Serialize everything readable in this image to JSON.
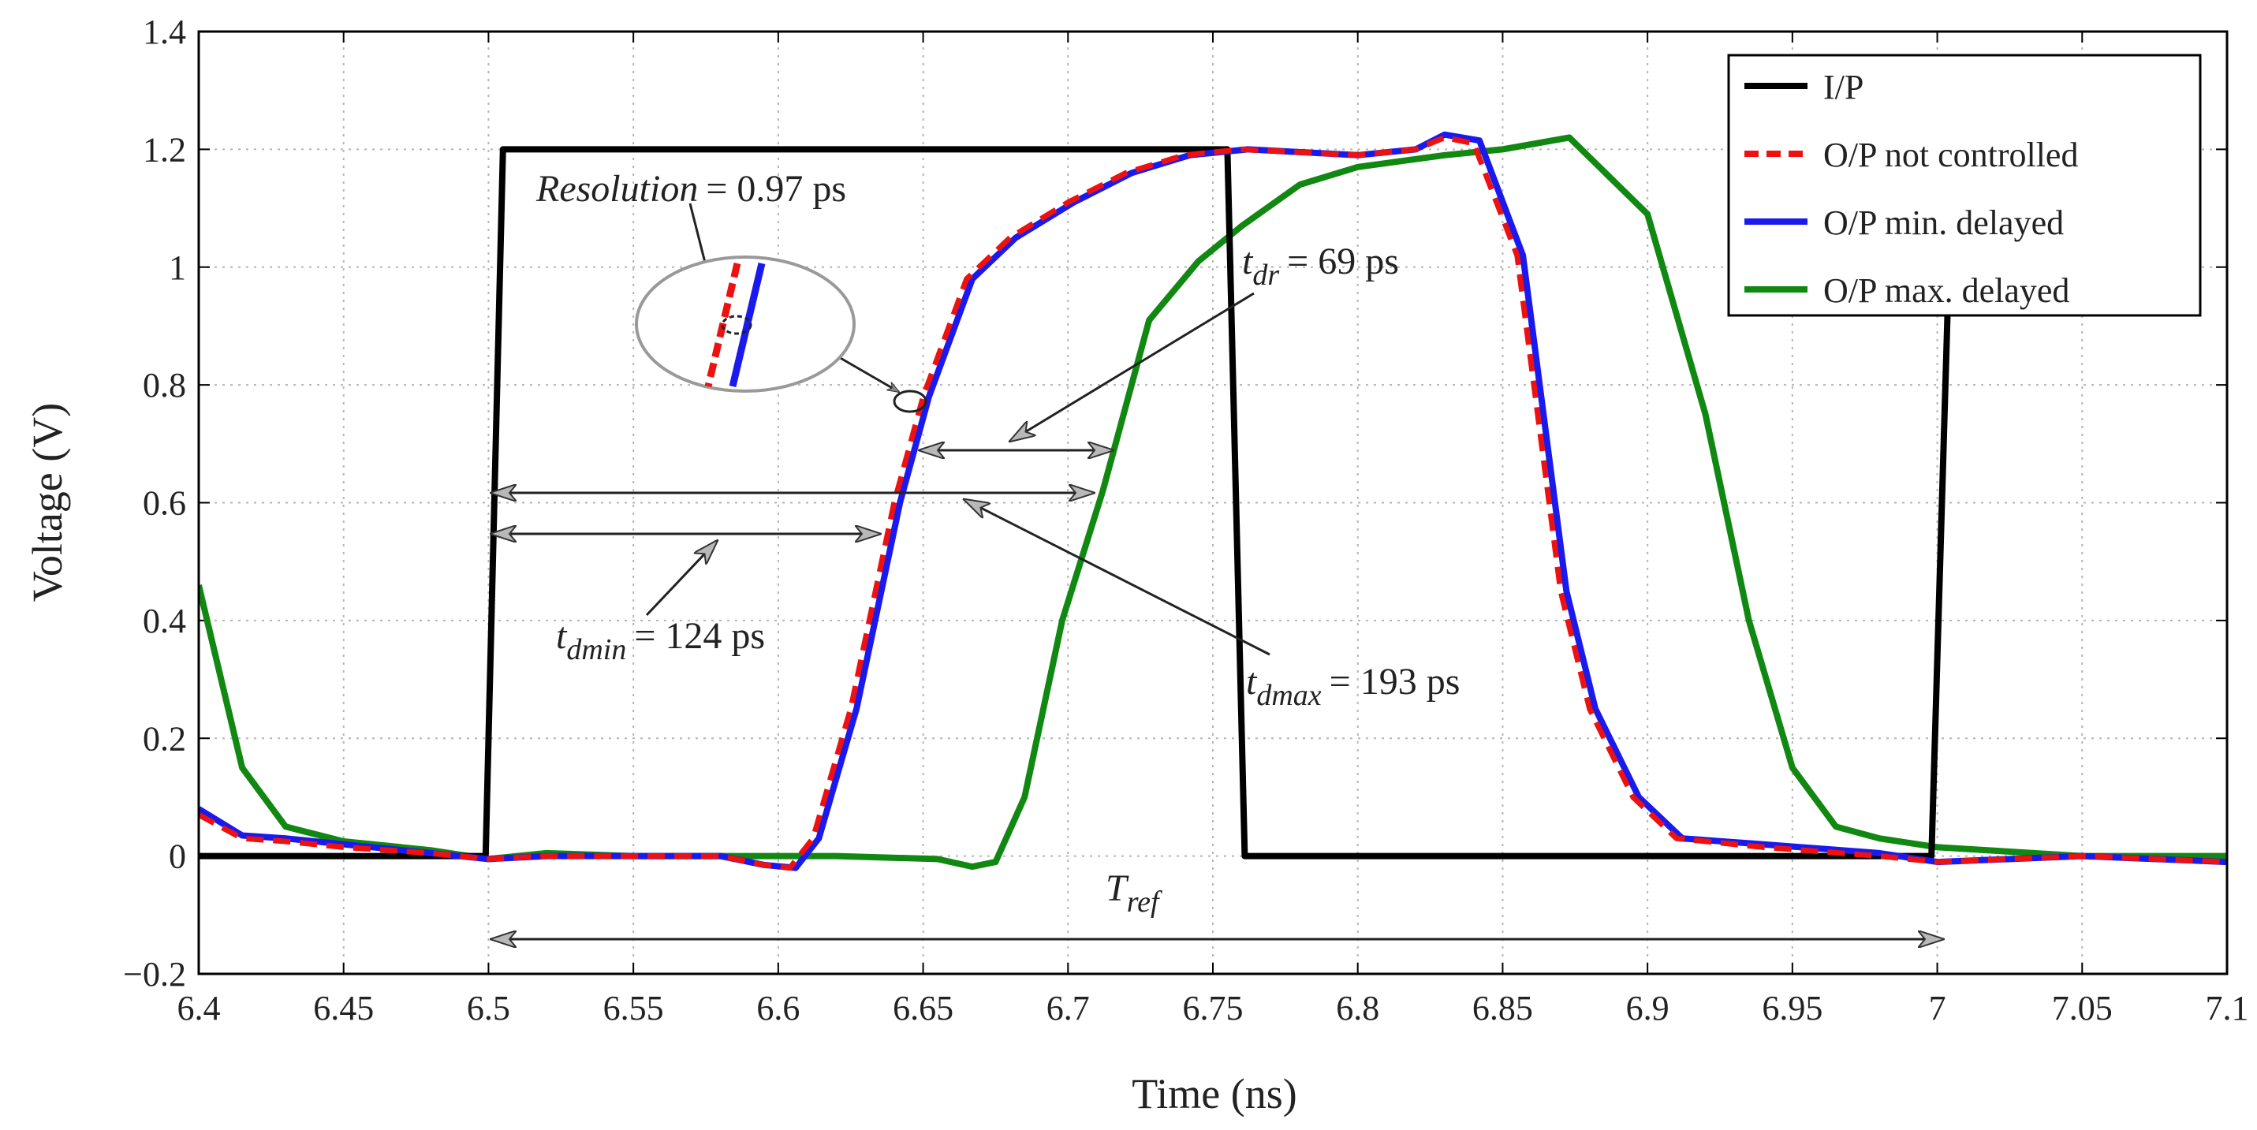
{
  "chart_data": {
    "type": "line",
    "xlabel": "Time (ns)",
    "ylabel": "Voltage (V)",
    "xlim": [
      6.4,
      7.1
    ],
    "ylim": [
      -0.2,
      1.4
    ],
    "x_ticks": [
      6.4,
      6.45,
      6.5,
      6.55,
      6.6,
      6.65,
      6.7,
      6.75,
      6.8,
      6.85,
      6.9,
      6.95,
      7.0,
      7.05,
      7.1
    ],
    "x_tick_labels": [
      "6.4",
      "6.45",
      "6.5",
      "6.55",
      "6.6",
      "6.65",
      "6.7",
      "6.75",
      "6.8",
      "6.85",
      "6.9",
      "6.95",
      "7",
      "7.05",
      "7.1"
    ],
    "y_ticks": [
      -0.2,
      0,
      0.2,
      0.4,
      0.6,
      0.8,
      1.0,
      1.2,
      1.4
    ],
    "y_tick_labels": [
      "−0.2",
      "0",
      "0.2",
      "0.4",
      "0.6",
      "0.8",
      "1",
      "1.2",
      "1.4"
    ],
    "grid": true,
    "legend_position": "top-right",
    "series": [
      {
        "name": "I/P",
        "color": "#000000",
        "dash": "solid",
        "points": [
          [
            6.4,
            0
          ],
          [
            6.499,
            0
          ],
          [
            6.505,
            1.2
          ],
          [
            6.755,
            1.2
          ],
          [
            6.761,
            0
          ],
          [
            6.998,
            0
          ],
          [
            7.004,
            1.0
          ]
        ]
      },
      {
        "name": "O/P not controlled",
        "color": "#ee1111",
        "dash": "dashed",
        "points": [
          [
            6.4,
            0.07
          ],
          [
            6.415,
            0.03
          ],
          [
            6.43,
            0.025
          ],
          [
            6.45,
            0.015
          ],
          [
            6.48,
            0.005
          ],
          [
            6.5,
            -0.005
          ],
          [
            6.52,
            0.0
          ],
          [
            6.55,
            0.0
          ],
          [
            6.58,
            0.0
          ],
          [
            6.595,
            -0.015
          ],
          [
            6.604,
            -0.02
          ],
          [
            6.612,
            0.03
          ],
          [
            6.625,
            0.25
          ],
          [
            6.64,
            0.6
          ],
          [
            6.65,
            0.78
          ],
          [
            6.665,
            0.98
          ],
          [
            6.68,
            1.05
          ],
          [
            6.7,
            1.11
          ],
          [
            6.72,
            1.16
          ],
          [
            6.74,
            1.19
          ],
          [
            6.76,
            1.2
          ],
          [
            6.8,
            1.19
          ],
          [
            6.82,
            1.2
          ],
          [
            6.83,
            1.22
          ],
          [
            6.84,
            1.21
          ],
          [
            6.855,
            1.02
          ],
          [
            6.87,
            0.45
          ],
          [
            6.88,
            0.25
          ],
          [
            6.895,
            0.1
          ],
          [
            6.91,
            0.03
          ],
          [
            6.94,
            0.015
          ],
          [
            6.98,
            0.0
          ],
          [
            7.0,
            -0.01
          ],
          [
            7.05,
            0.0
          ],
          [
            7.1,
            -0.01
          ]
        ]
      },
      {
        "name": "O/P min. delayed",
        "color": "#1a1aee",
        "dash": "solid",
        "points": [
          [
            6.4,
            0.08
          ],
          [
            6.415,
            0.035
          ],
          [
            6.43,
            0.03
          ],
          [
            6.45,
            0.02
          ],
          [
            6.48,
            0.005
          ],
          [
            6.5,
            -0.005
          ],
          [
            6.52,
            0.0
          ],
          [
            6.55,
            0.0
          ],
          [
            6.58,
            0.0
          ],
          [
            6.595,
            -0.015
          ],
          [
            6.606,
            -0.02
          ],
          [
            6.614,
            0.03
          ],
          [
            6.627,
            0.25
          ],
          [
            6.642,
            0.6
          ],
          [
            6.652,
            0.78
          ],
          [
            6.667,
            0.98
          ],
          [
            6.682,
            1.05
          ],
          [
            6.702,
            1.11
          ],
          [
            6.722,
            1.16
          ],
          [
            6.742,
            1.19
          ],
          [
            6.762,
            1.2
          ],
          [
            6.8,
            1.19
          ],
          [
            6.82,
            1.2
          ],
          [
            6.83,
            1.225
          ],
          [
            6.842,
            1.215
          ],
          [
            6.857,
            1.02
          ],
          [
            6.872,
            0.45
          ],
          [
            6.882,
            0.25
          ],
          [
            6.897,
            0.1
          ],
          [
            6.912,
            0.03
          ],
          [
            6.94,
            0.02
          ],
          [
            6.98,
            0.005
          ],
          [
            7.0,
            -0.01
          ],
          [
            7.05,
            0.0
          ],
          [
            7.1,
            -0.01
          ]
        ]
      },
      {
        "name": "O/P max. delayed",
        "color": "#118811",
        "dash": "solid",
        "points": [
          [
            6.4,
            0.46
          ],
          [
            6.415,
            0.15
          ],
          [
            6.43,
            0.05
          ],
          [
            6.45,
            0.025
          ],
          [
            6.48,
            0.01
          ],
          [
            6.5,
            -0.005
          ],
          [
            6.52,
            0.005
          ],
          [
            6.55,
            0.0
          ],
          [
            6.58,
            0.0
          ],
          [
            6.62,
            0.0
          ],
          [
            6.655,
            -0.005
          ],
          [
            6.667,
            -0.018
          ],
          [
            6.675,
            -0.01
          ],
          [
            6.685,
            0.1
          ],
          [
            6.698,
            0.4
          ],
          [
            6.712,
            0.62
          ],
          [
            6.728,
            0.91
          ],
          [
            6.745,
            1.01
          ],
          [
            6.76,
            1.07
          ],
          [
            6.78,
            1.14
          ],
          [
            6.8,
            1.17
          ],
          [
            6.83,
            1.19
          ],
          [
            6.85,
            1.2
          ],
          [
            6.873,
            1.22
          ],
          [
            6.9,
            1.09
          ],
          [
            6.92,
            0.75
          ],
          [
            6.935,
            0.4
          ],
          [
            6.95,
            0.15
          ],
          [
            6.965,
            0.05
          ],
          [
            6.98,
            0.03
          ],
          [
            7.0,
            0.015
          ],
          [
            7.05,
            0.0
          ],
          [
            7.1,
            0.0
          ]
        ]
      }
    ],
    "annotations": {
      "resolution": {
        "label": "Resolution",
        "value": "= 0.97 ps"
      },
      "t_dr": {
        "t": "t",
        "sub": "dr",
        "value": "= 69 ps"
      },
      "t_dmin": {
        "t": "t",
        "sub": "dmin",
        "value": "= 124 ps"
      },
      "t_dmax": {
        "t": "t",
        "sub": "dmax",
        "value": "= 193 ps"
      },
      "t_ref": {
        "t": "T",
        "sub": "ref"
      }
    }
  }
}
